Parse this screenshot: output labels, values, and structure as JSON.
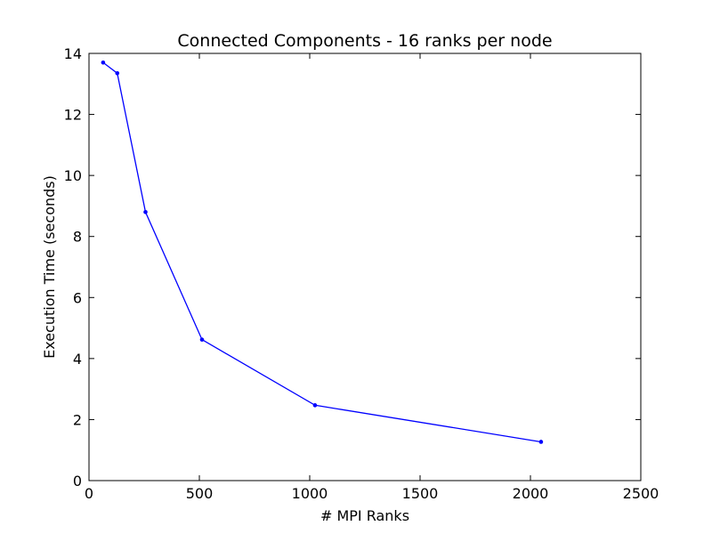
{
  "chart_data": {
    "type": "line",
    "title": "Connected Components - 16 ranks per node",
    "xlabel": "# MPI Ranks",
    "ylabel": "Execution Time (seconds)",
    "xlim": [
      0,
      2500
    ],
    "ylim": [
      0,
      14
    ],
    "xticks": [
      0,
      500,
      1000,
      1500,
      2000,
      2500
    ],
    "yticks": [
      0,
      2,
      4,
      6,
      8,
      10,
      12,
      14
    ],
    "grid": false,
    "series": [
      {
        "color": "#0000ff",
        "x": [
          64,
          128,
          256,
          512,
          1024,
          2048
        ],
        "y": [
          13.7,
          13.35,
          8.8,
          4.62,
          2.47,
          1.27
        ]
      }
    ]
  }
}
